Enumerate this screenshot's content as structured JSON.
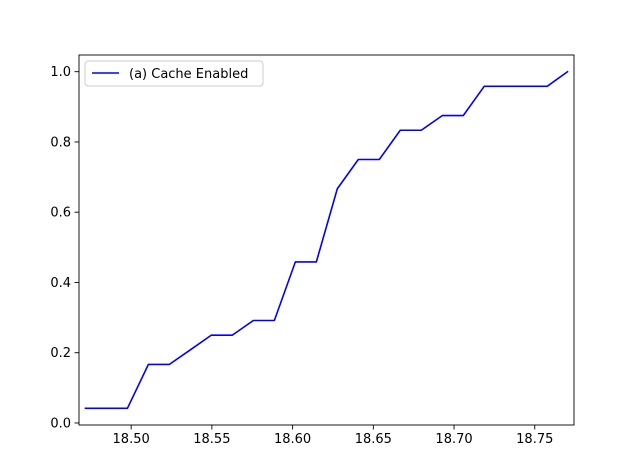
{
  "chart_data": {
    "type": "line",
    "title": "",
    "xlabel": "",
    "ylabel": "",
    "xlim": [
      18.4677,
      18.7743
    ],
    "ylim": [
      -0.0058,
      1.0475
    ],
    "xticks": [
      18.5,
      18.55,
      18.6,
      18.65,
      18.7,
      18.75
    ],
    "xtick_labels": [
      "18.50",
      "18.55",
      "18.60",
      "18.65",
      "18.70",
      "18.75"
    ],
    "yticks": [
      0.0,
      0.2,
      0.4,
      0.6,
      0.8,
      1.0
    ],
    "ytick_labels": [
      "0.0",
      "0.2",
      "0.4",
      "0.6",
      "0.8",
      "1.0"
    ],
    "grid": false,
    "legend_position": "top-left",
    "series": [
      {
        "name": "(a) Cache Enabled",
        "color": "#0000ff",
        "x": [
          18.4717,
          18.4847,
          18.4977,
          18.5107,
          18.5237,
          18.5367,
          18.5497,
          18.5627,
          18.5757,
          18.5887,
          18.6017,
          18.6147,
          18.6277,
          18.6407,
          18.6537,
          18.6667,
          18.6797,
          18.6927,
          18.7057,
          18.7187,
          18.7317,
          18.7447,
          18.7577,
          18.7703
        ],
        "y": [
          0.0417,
          0.0417,
          0.0417,
          0.1667,
          0.1667,
          0.2083,
          0.25,
          0.25,
          0.2917,
          0.2917,
          0.4583,
          0.4583,
          0.6667,
          0.75,
          0.75,
          0.8333,
          0.8333,
          0.875,
          0.875,
          0.9583,
          0.9583,
          0.9583,
          0.9583,
          1.0
        ]
      }
    ]
  }
}
